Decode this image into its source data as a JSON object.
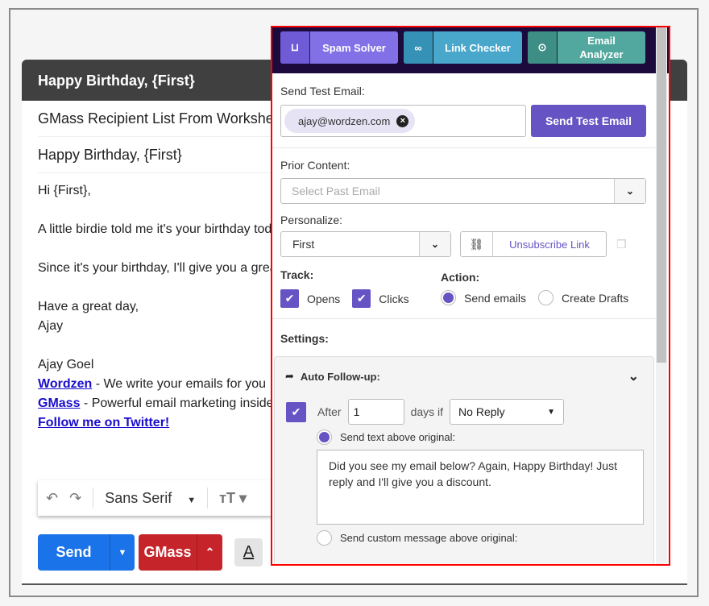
{
  "compose": {
    "header_title": "Happy Birthday, {First}",
    "to_field": "GMass Recipient List From Worksheet",
    "subject": "Happy Birthday, {First}",
    "body": {
      "greeting": "Hi {First},",
      "line1": "A little birdie told me it's your birthday today",
      "line2": "Since it's your birthday, I'll give you a great",
      "closing": "Have a great day,",
      "name": "Ajay",
      "sig_name": "Ajay Goel",
      "sig_links": [
        {
          "link": "Wordzen",
          "text": " - We write your emails for you"
        },
        {
          "link": "GMass",
          "text": " - Powerful email marketing inside"
        }
      ],
      "twitter": "Follow me on Twitter!"
    },
    "toolbar": {
      "font": "Sans Serif"
    },
    "send_label": "Send",
    "gmass_label": "GMass",
    "format_icon_label": "A"
  },
  "panel": {
    "tools": [
      {
        "label": "Spam Solver",
        "icon": "inbox-icon",
        "color": "#8270e6",
        "icon_bg": "#6f5bd6"
      },
      {
        "label": "Link Checker",
        "icon": "link-icon",
        "color": "#4aa7cc",
        "icon_bg": "#3591b5"
      },
      {
        "label": "Email Analyzer",
        "icon": "analyze-icon",
        "color": "#52a89e",
        "icon_bg": "#3d8f85"
      }
    ],
    "test_email_label": "Send Test Email:",
    "test_email_chip": "ajay@wordzen.com",
    "send_test_button": "Send Test Email",
    "prior_content_label": "Prior Content:",
    "prior_content_placeholder": "Select Past Email",
    "personalize_label": "Personalize:",
    "personalize_value": "First",
    "unsubscribe_label": "Unsubscribe Link",
    "track_label": "Track:",
    "track_opens": "Opens",
    "track_clicks": "Clicks",
    "action_label": "Action:",
    "action_send": "Send emails",
    "action_drafts": "Create Drafts",
    "settings_label": "Settings:",
    "followup": {
      "title": "Auto Follow-up:",
      "after_label": "After",
      "days": "1",
      "days_if": "days if",
      "condition": "No Reply",
      "opt_text_above": "Send text above original:",
      "message": "Did you see my email below? Again, Happy Birthday! Just reply and I'll give you a discount.",
      "opt_custom": "Send custom message above original:"
    },
    "accent": "#6653c4"
  }
}
